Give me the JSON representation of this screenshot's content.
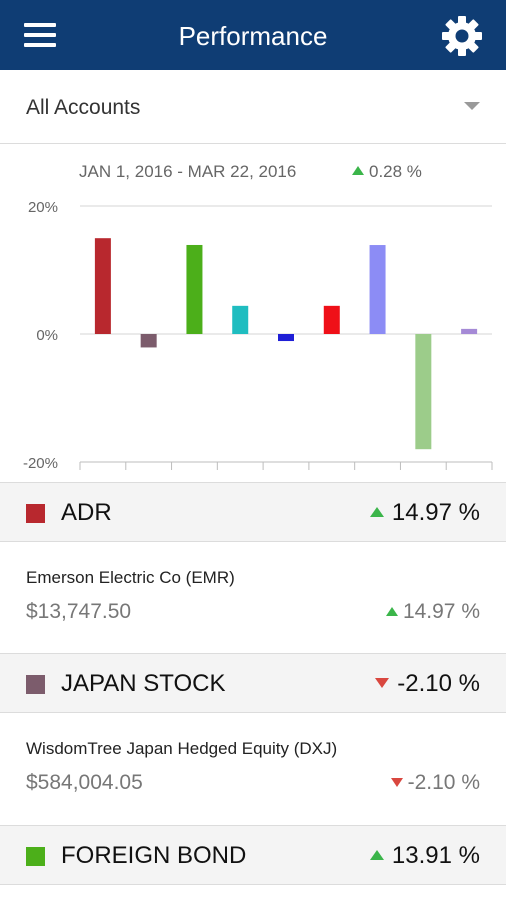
{
  "header": {
    "title": "Performance"
  },
  "account_selector": {
    "label": "All Accounts"
  },
  "summary": {
    "date_range": "JAN 1, 2016 - MAR 22, 2016",
    "change": "0.28 %",
    "change_dir": "up"
  },
  "chart_data": {
    "type": "bar",
    "ylim": [
      -20,
      20
    ],
    "yticks": [
      "20%",
      "0%",
      "-20%"
    ],
    "ytick_values": [
      20,
      0,
      -20
    ],
    "grid": true,
    "values": [
      14.97,
      -2.1,
      13.91,
      4.4,
      -1.1,
      4.4,
      13.9,
      -18.0,
      0.8
    ],
    "colors": [
      "#b8282e",
      "#7c5c6c",
      "#4caf1a",
      "#1fbdc0",
      "#1f1fd6",
      "#ef1018",
      "#8c8cf5",
      "#9ccc8a",
      "#a58ad6"
    ]
  },
  "groups": [
    {
      "name": "ADR",
      "pct": "14.97 %",
      "dir": "up",
      "color": "#b8282e",
      "holding": {
        "name": "Emerson Electric Co (EMR)",
        "value": "$13,747.50",
        "pct": "14.97 %",
        "dir": "up"
      }
    },
    {
      "name": "JAPAN STOCK",
      "pct": "-2.10 %",
      "dir": "down",
      "color": "#7c5c6c",
      "holding": {
        "name": "WisdomTree Japan Hedged Equity (DXJ)",
        "value": "$584,004.05",
        "pct": "-2.10 %",
        "dir": "down"
      }
    },
    {
      "name": "FOREIGN BOND",
      "pct": "13.91 %",
      "dir": "up",
      "color": "#4caf1a"
    }
  ]
}
